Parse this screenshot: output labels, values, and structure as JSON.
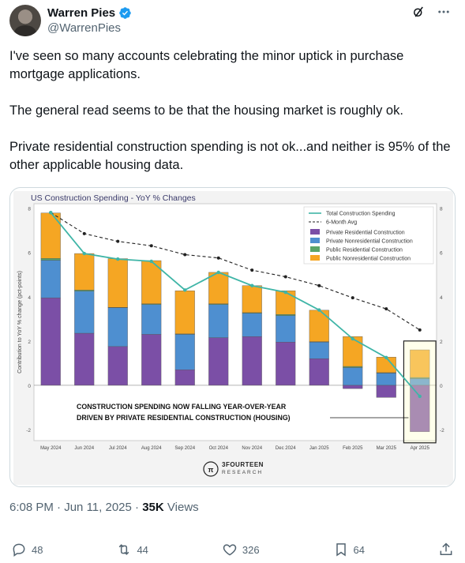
{
  "author": {
    "name": "Warren Pies",
    "handle": "@WarrenPies"
  },
  "tweet": {
    "paragraphs": [
      "I've seen so many accounts celebrating the minor uptick in purchase mortgage applications.",
      "The general read seems to be that the housing market is roughly ok.",
      "Private residential construction spending is not ok...and neither is 95% of the other applicable housing data."
    ]
  },
  "meta": {
    "time": "6:08 PM",
    "date": "Jun 11, 2025",
    "views": "35K",
    "views_label": "Views"
  },
  "actions": {
    "replies": "48",
    "reposts": "44",
    "likes": "326",
    "bookmarks": "64"
  },
  "colors": {
    "private_res": "#7b4fa6",
    "private_nonres": "#4e8fd0",
    "public_res": "#5aa469",
    "public_nonres": "#f5a623",
    "line": "#3fb5a7"
  },
  "chart_data": {
    "type": "bar",
    "title": "US Construction Spending - YoY % Changes",
    "ylabel": "Contribution to YoY % change (pct-points)",
    "ylim": [
      -2.5,
      8.2
    ],
    "yticks": [
      -2,
      0,
      2,
      4,
      6,
      8
    ],
    "categories": [
      "May 2024",
      "Jun 2024",
      "Jul 2024",
      "Aug 2024",
      "Sep 2024",
      "Oct 2024",
      "Nov 2024",
      "Dec 2024",
      "Jan 2025",
      "Feb 2025",
      "Mar 2025",
      "Apr 2025"
    ],
    "series": [
      {
        "name": "Private Residential Construction",
        "values": [
          3.95,
          2.35,
          1.75,
          2.3,
          0.7,
          2.15,
          2.2,
          1.95,
          1.2,
          -0.15,
          -0.55,
          -2.1
        ]
      },
      {
        "name": "Private Nonresidential Construction",
        "values": [
          1.7,
          1.9,
          1.75,
          1.35,
          1.6,
          1.5,
          1.05,
          1.2,
          0.75,
          0.8,
          0.55,
          0.3
        ]
      },
      {
        "name": "Public Residential Construction",
        "values": [
          0.08,
          0.05,
          0.02,
          0.03,
          0.02,
          0.03,
          0.03,
          0.05,
          0.02,
          0.05,
          0.02,
          0.05
        ]
      },
      {
        "name": "Public Nonresidential Construction",
        "values": [
          2.05,
          1.65,
          2.2,
          1.95,
          1.95,
          1.42,
          1.22,
          1.07,
          1.42,
          1.35,
          0.7,
          1.25
        ]
      }
    ],
    "lines": [
      {
        "name": "Total Construction Spending",
        "values": [
          7.8,
          5.95,
          5.7,
          5.6,
          4.3,
          5.1,
          4.5,
          4.2,
          3.4,
          2.1,
          1.25,
          -0.5
        ]
      },
      {
        "name": "6-Month Avg",
        "values": [
          7.8,
          6.85,
          6.5,
          6.3,
          5.9,
          5.75,
          5.2,
          4.9,
          4.5,
          3.95,
          3.45,
          2.5
        ]
      }
    ],
    "annotation": "CONSTRUCTION SPENDING NOW FALLING YEAR-OVER-YEAR\nDRIVEN BY PRIVATE RESIDENTIAL CONSTRUCTION (HOUSING)",
    "watermark": "3FOURTEEN RESEARCH",
    "legend": "top-right"
  }
}
